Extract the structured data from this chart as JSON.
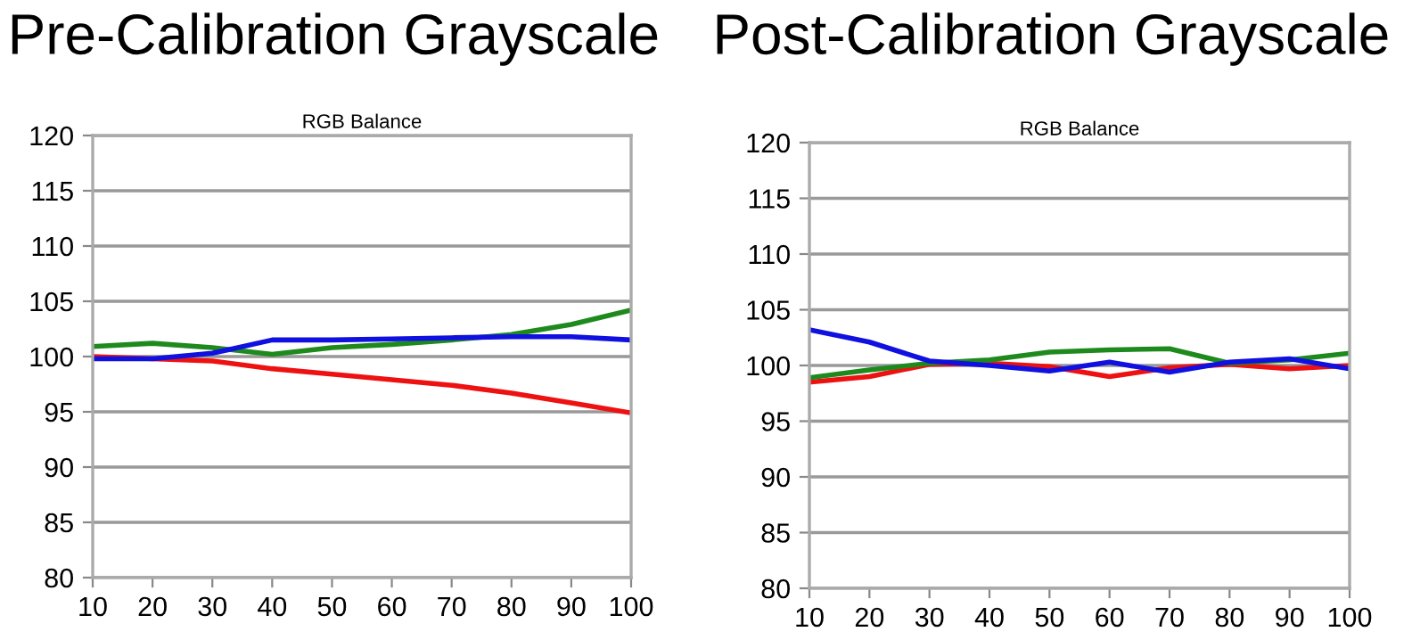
{
  "chart_data": [
    {
      "type": "line",
      "title": "Pre-Calibration Grayscale",
      "subtitle": "RGB Balance",
      "x": [
        10,
        20,
        30,
        40,
        50,
        60,
        70,
        80,
        90,
        100
      ],
      "series": [
        {
          "color": "#ee1111",
          "values": [
            100.0,
            99.8,
            99.6,
            98.9,
            98.4,
            97.9,
            97.4,
            96.7,
            95.8,
            94.9
          ]
        },
        {
          "color": "#1e8a1e",
          "values": [
            100.9,
            101.2,
            100.8,
            100.2,
            100.8,
            101.1,
            101.5,
            102.0,
            102.9,
            104.2
          ]
        },
        {
          "color": "#1010e0",
          "values": [
            99.8,
            99.8,
            100.3,
            101.5,
            101.5,
            101.6,
            101.7,
            101.8,
            101.8,
            101.5
          ]
        }
      ],
      "xlim": [
        10,
        100
      ],
      "xticks": [
        10,
        20,
        30,
        40,
        50,
        60,
        70,
        80,
        90,
        100
      ],
      "ylim": [
        80,
        120
      ],
      "yticks": [
        80,
        85,
        90,
        95,
        100,
        105,
        110,
        115,
        120
      ],
      "grid": "y"
    },
    {
      "type": "line",
      "title": "Post-Calibration Grayscale",
      "subtitle": "RGB Balance",
      "x": [
        10,
        20,
        30,
        40,
        50,
        60,
        70,
        80,
        90,
        100
      ],
      "series": [
        {
          "color": "#ee1111",
          "values": [
            98.5,
            99.0,
            100.1,
            100.2,
            99.9,
            99.0,
            99.8,
            100.1,
            99.7,
            100.0
          ]
        },
        {
          "color": "#1e8a1e",
          "values": [
            98.9,
            99.6,
            100.2,
            100.5,
            101.2,
            101.4,
            101.5,
            100.2,
            100.5,
            101.1
          ]
        },
        {
          "color": "#1010e0",
          "values": [
            103.2,
            102.1,
            100.4,
            100.0,
            99.5,
            100.3,
            99.4,
            100.3,
            100.6,
            99.7
          ]
        }
      ],
      "xlim": [
        10,
        100
      ],
      "xticks": [
        10,
        20,
        30,
        40,
        50,
        60,
        70,
        80,
        90,
        100
      ],
      "ylim": [
        80,
        120
      ],
      "yticks": [
        80,
        85,
        90,
        95,
        100,
        105,
        110,
        115,
        120
      ],
      "grid": "y"
    }
  ]
}
